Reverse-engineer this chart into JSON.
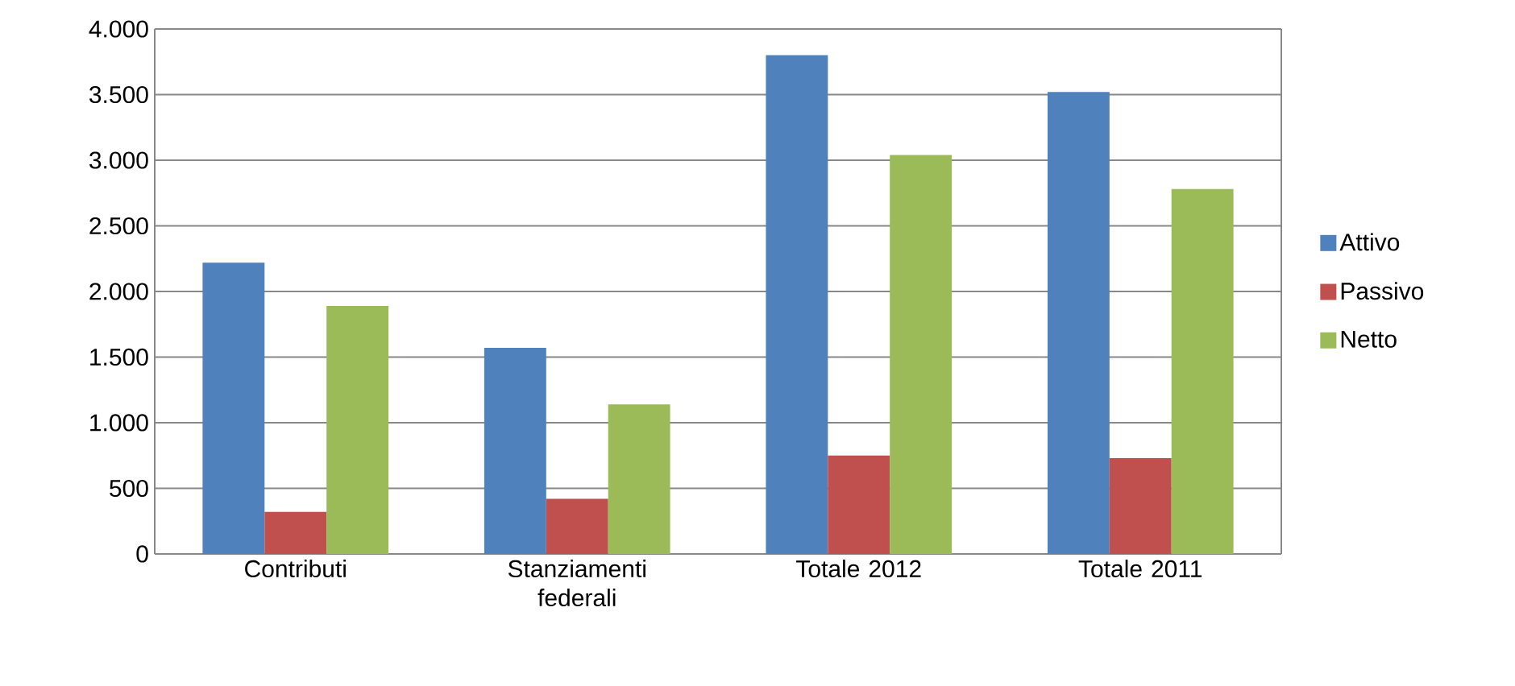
{
  "chart_data": {
    "type": "bar",
    "categories": [
      "Contributi",
      "Stanziamenti federali",
      "Totale 2012",
      "Totale 2011"
    ],
    "series": [
      {
        "name": "Attivo",
        "color": "#4f81bd",
        "values": [
          2220,
          1570,
          3800,
          3520
        ]
      },
      {
        "name": "Passivo",
        "color": "#c0504d",
        "values": [
          320,
          420,
          750,
          730
        ]
      },
      {
        "name": "Netto",
        "color": "#9bbb59",
        "values": [
          1890,
          1140,
          3040,
          2780
        ]
      }
    ],
    "ylim": [
      0,
      4000
    ],
    "yticks": [
      0,
      500,
      {
        "value": 1000,
        "label": "1.000"
      },
      {
        "value": 1500,
        "label": "1.500"
      },
      {
        "value": 2000,
        "label": "2.000"
      },
      {
        "value": 2500,
        "label": "2.500"
      },
      {
        "value": 3000,
        "label": "3.000"
      },
      {
        "value": 3500,
        "label": "3.500"
      },
      {
        "value": 4000,
        "label": "4.000"
      }
    ],
    "grid": "y",
    "legend": "right"
  }
}
